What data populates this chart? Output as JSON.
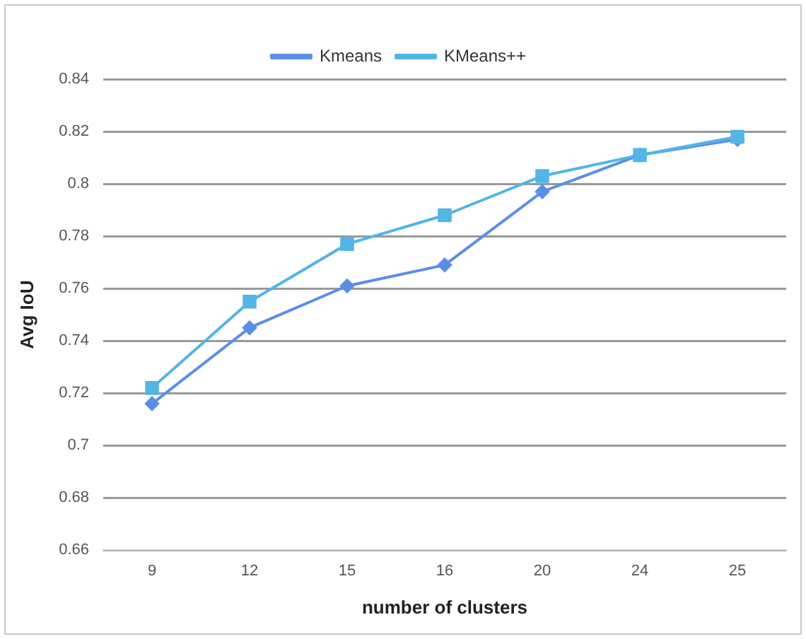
{
  "chart_data": {
    "type": "line",
    "xlabel": "number of clusters",
    "ylabel": "Avg IoU",
    "categories": [
      "9",
      "12",
      "15",
      "16",
      "20",
      "24",
      "25"
    ],
    "series": [
      {
        "name": "Kmeans",
        "color": "#5b8ee6",
        "marker": "diamond",
        "values": [
          0.716,
          0.745,
          0.761,
          0.769,
          0.797,
          0.811,
          0.817
        ]
      },
      {
        "name": "KMeans++",
        "color": "#52b5e6",
        "marker": "square",
        "values": [
          0.722,
          0.755,
          0.777,
          0.788,
          0.803,
          0.811,
          0.818
        ]
      }
    ],
    "ylim": [
      0.66,
      0.84
    ],
    "yticks": [
      0.66,
      0.68,
      0.7,
      0.72,
      0.74,
      0.76,
      0.78,
      0.8,
      0.82,
      0.84
    ],
    "grid": "y",
    "legend": "top"
  }
}
